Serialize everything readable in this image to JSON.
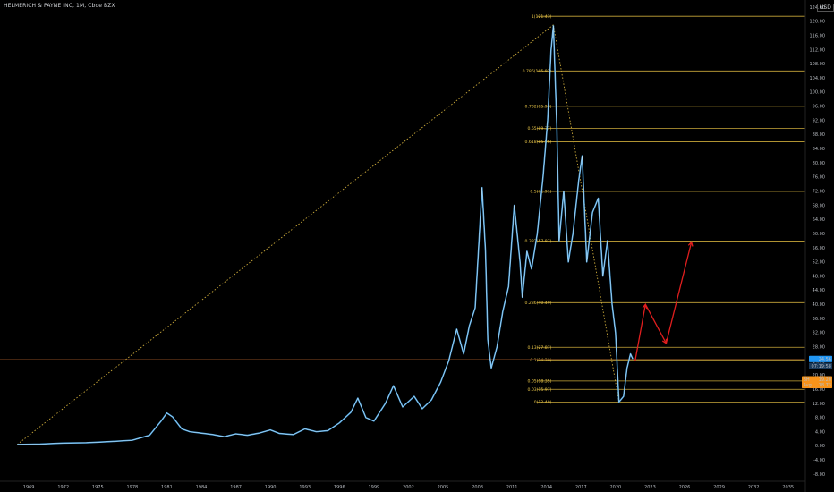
{
  "header": {
    "title": "HELMERICH & PAYNE INC, 1M, Cboe BZX",
    "currency": "USD"
  },
  "colors": {
    "background": "#000000",
    "price_line": "#4aa3e0",
    "fib_line": "#c9a83a",
    "fib_label": "#e8c548",
    "projection": "#e01e1e",
    "price_tag": "#2196f3",
    "high_low_tag": "#f7931a"
  },
  "chart_data": {
    "type": "line",
    "title": "HELMERICH & PAYNE INC, 1M, Cboe BZX",
    "xlabel": "",
    "ylabel": "",
    "ylim": [
      -10,
      124
    ],
    "xlim": [
      1966.5,
      2036.5
    ],
    "y_ticks": [
      -8,
      -4,
      0,
      4,
      8,
      12,
      16,
      20,
      24,
      28,
      32,
      36,
      40,
      44,
      48,
      52,
      56,
      60,
      64,
      68,
      72,
      76,
      80,
      84,
      88,
      92,
      96,
      100,
      104,
      108,
      112,
      116,
      120,
      124
    ],
    "y_tick_labels": [
      "-8.00",
      "-4.00",
      "0.00",
      "4.00",
      "8.00",
      "12.00",
      "16.00",
      "20.00",
      "24.00",
      "28.00",
      "32.00",
      "36.00",
      "40.00",
      "44.00",
      "48.00",
      "52.00",
      "56.00",
      "60.00",
      "64.00",
      "68.00",
      "72.00",
      "76.00",
      "80.00",
      "84.00",
      "88.00",
      "92.00",
      "96.00",
      "100.00",
      "104.00",
      "108.00",
      "112.00",
      "116.00",
      "120.00",
      "124.00"
    ],
    "x_ticks": [
      1969,
      1972,
      1975,
      1978,
      1981,
      1984,
      1987,
      1990,
      1993,
      1996,
      1999,
      2002,
      2005,
      2008,
      2011,
      2014,
      2017,
      2020,
      2023,
      2026,
      2029,
      2032,
      2035
    ],
    "x_tick_labels": [
      "1969",
      "1972",
      "1975",
      "1978",
      "1981",
      "1984",
      "1987",
      "1990",
      "1993",
      "1996",
      "1999",
      "2002",
      "2005",
      "2008",
      "2011",
      "2014",
      "2017",
      "2020",
      "2023",
      "2026",
      "2029",
      "2032",
      "2035"
    ],
    "grid": false,
    "series": [
      {
        "values": [
          [
            1968.0,
            0.4
          ],
          [
            1970.0,
            0.5
          ],
          [
            1972.0,
            0.8
          ],
          [
            1974.0,
            0.9
          ],
          [
            1976.0,
            1.2
          ],
          [
            1978.0,
            1.6
          ],
          [
            1979.5,
            3.0
          ],
          [
            1980.5,
            7.0
          ],
          [
            1981.0,
            9.3
          ],
          [
            1981.5,
            8.2
          ],
          [
            1982.3,
            4.8
          ],
          [
            1983.0,
            4.0
          ],
          [
            1984.0,
            3.6
          ],
          [
            1985.0,
            3.2
          ],
          [
            1986.0,
            2.6
          ],
          [
            1987.0,
            3.4
          ],
          [
            1988.0,
            3.0
          ],
          [
            1989.0,
            3.6
          ],
          [
            1990.0,
            4.5
          ],
          [
            1990.8,
            3.5
          ],
          [
            1992.0,
            3.2
          ],
          [
            1993.0,
            4.8
          ],
          [
            1994.0,
            4.0
          ],
          [
            1995.0,
            4.3
          ],
          [
            1996.0,
            6.5
          ],
          [
            1997.0,
            9.5
          ],
          [
            1997.6,
            13.5
          ],
          [
            1998.3,
            8.0
          ],
          [
            1999.0,
            7.0
          ],
          [
            2000.0,
            12.0
          ],
          [
            2000.7,
            17.0
          ],
          [
            2001.5,
            11.0
          ],
          [
            2002.5,
            14.0
          ],
          [
            2003.2,
            10.5
          ],
          [
            2004.0,
            13.0
          ],
          [
            2004.8,
            18.0
          ],
          [
            2005.5,
            24.0
          ],
          [
            2006.2,
            33.0
          ],
          [
            2006.8,
            26.0
          ],
          [
            2007.3,
            34.0
          ],
          [
            2007.8,
            39.0
          ],
          [
            2008.4,
            73.0
          ],
          [
            2008.7,
            55.0
          ],
          [
            2008.9,
            30.0
          ],
          [
            2009.2,
            22.0
          ],
          [
            2009.7,
            28.0
          ],
          [
            2010.2,
            38.0
          ],
          [
            2010.7,
            45.0
          ],
          [
            2011.2,
            68.0
          ],
          [
            2011.7,
            52.0
          ],
          [
            2011.9,
            42.0
          ],
          [
            2012.3,
            55.0
          ],
          [
            2012.7,
            50.0
          ],
          [
            2013.2,
            60.0
          ],
          [
            2013.7,
            76.0
          ],
          [
            2014.1,
            92.0
          ],
          [
            2014.4,
            112.0
          ],
          [
            2014.6,
            118.7
          ],
          [
            2014.9,
            90.0
          ],
          [
            2015.1,
            58.0
          ],
          [
            2015.5,
            72.0
          ],
          [
            2015.9,
            52.0
          ],
          [
            2016.3,
            60.0
          ],
          [
            2016.8,
            75.0
          ],
          [
            2017.1,
            82.0
          ],
          [
            2017.5,
            52.0
          ],
          [
            2018.0,
            66.0
          ],
          [
            2018.5,
            70.0
          ],
          [
            2018.9,
            48.0
          ],
          [
            2019.3,
            58.0
          ],
          [
            2019.7,
            40.0
          ],
          [
            2020.0,
            32.0
          ],
          [
            2020.3,
            12.4
          ],
          [
            2020.7,
            14.0
          ],
          [
            2021.0,
            22.0
          ],
          [
            2021.3,
            26.0
          ],
          [
            2021.5,
            24.56
          ]
        ]
      }
    ],
    "fibonacci": [
      {
        "label": "1(121.43)",
        "value": 121.43
      },
      {
        "label": "0.786(105.97)",
        "value": 105.97
      },
      {
        "label": "0.702(95.98)",
        "value": 95.98
      },
      {
        "label": "0.65(89.77)",
        "value": 89.77
      },
      {
        "label": "0.618(85.96)",
        "value": 85.96
      },
      {
        "label": "0.5(71.91)",
        "value": 71.91
      },
      {
        "label": "0.382(57.87)",
        "value": 57.87
      },
      {
        "label": "0.236(40.49)",
        "value": 40.49
      },
      {
        "label": "0.13(27.87)",
        "value": 27.87
      },
      {
        "label": "0.1(24.30)",
        "value": 24.3
      },
      {
        "label": "0.05(18.35)",
        "value": 18.35
      },
      {
        "label": "0.03(15.97)",
        "value": 15.97
      },
      {
        "label": "0(12.40)",
        "value": 12.4
      }
    ],
    "trendlines": [
      {
        "from": [
          1968.0,
          0.4
        ],
        "to": [
          2014.6,
          119.0
        ]
      },
      {
        "from": [
          2014.6,
          119.0
        ],
        "to": [
          2020.3,
          12.4
        ]
      }
    ],
    "projection": [
      [
        2021.7,
        24.0
      ],
      [
        2022.6,
        40.0
      ],
      [
        2024.4,
        29.0
      ],
      [
        2026.6,
        57.6
      ]
    ],
    "horizontal_line": 24.56,
    "price_tags": [
      {
        "label": "24.56",
        "value": 24.56,
        "kind": "price"
      },
      {
        "label": "07:19:58",
        "value": 22.6,
        "kind": "countdown"
      },
      {
        "label": "19.20",
        "value": 18.8,
        "kind": "high_low",
        "prefix": "BH"
      },
      {
        "label": "18.73",
        "value": 17.2,
        "kind": "avg",
        "prefix": "Avg"
      }
    ]
  }
}
